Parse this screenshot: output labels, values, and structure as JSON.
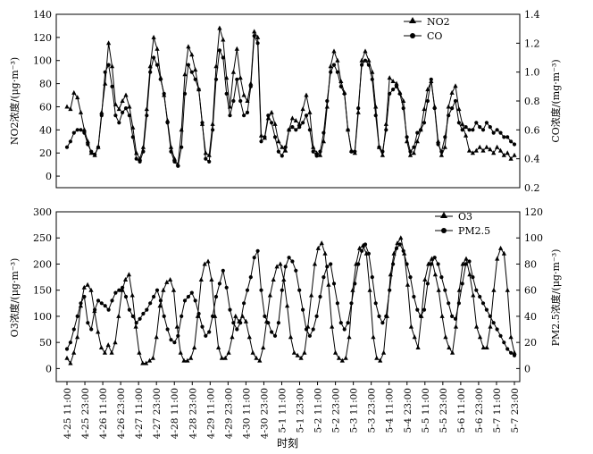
{
  "xlabel": "时刻",
  "x_ticks": [
    "4-25 11:00",
    "4-25 23:00",
    "4-26 11:00",
    "4-26 23:00",
    "4-27 11:00",
    "4-27 23:00",
    "4-28 11:00",
    "4-28 23:00",
    "4-29 11:00",
    "4-29 23:00",
    "4-30 11:00",
    "4-30 23:00",
    "5-1 11:00",
    "5-1 23:00",
    "5-2 11:00",
    "5-2 23:00",
    "5-3 11:00",
    "5-3 23:00",
    "5-4 11:00",
    "5-4 23:00",
    "5-5 11:00",
    "5-5 23:00",
    "5-6 11:00",
    "5-6 23:00",
    "5-7 11:00",
    "5-7 23:00"
  ],
  "chart_data": [
    {
      "type": "line",
      "ylabel_left": "NO2浓度/(μg·m⁻³)",
      "ylabel_right": "CO浓度/(mg·m⁻³)",
      "ylim_left": [
        -10,
        140
      ],
      "ylim_right": [
        0.2,
        1.4
      ],
      "yticks_left": [
        "0",
        "20",
        "40",
        "60",
        "80",
        "100",
        "120",
        "140"
      ],
      "yticks_right": [
        "0.2",
        "0.4",
        "0.6",
        "0.8",
        "1.0",
        "1.2",
        "1.4"
      ],
      "legend_position": "top-right",
      "series": [
        {
          "name": "NO2",
          "axis": "left",
          "marker": "triangle",
          "values": [
            60,
            58,
            72,
            68,
            55,
            40,
            30,
            20,
            18,
            25,
            55,
            80,
            115,
            95,
            62,
            58,
            65,
            70,
            60,
            42,
            20,
            15,
            25,
            58,
            95,
            120,
            110,
            85,
            70,
            48,
            25,
            15,
            10,
            40,
            88,
            112,
            105,
            92,
            75,
            45,
            20,
            18,
            45,
            95,
            128,
            118,
            85,
            60,
            90,
            110,
            85,
            70,
            65,
            80,
            125,
            120,
            35,
            33,
            50,
            55,
            45,
            30,
            25,
            22,
            40,
            50,
            48,
            45,
            58,
            70,
            55,
            25,
            20,
            18,
            30,
            60,
            95,
            108,
            100,
            82,
            72,
            40,
            22,
            20,
            55,
            100,
            108,
            100,
            90,
            60,
            25,
            18,
            45,
            85,
            82,
            80,
            72,
            65,
            30,
            18,
            20,
            30,
            40,
            58,
            75,
            82,
            60,
            30,
            18,
            25,
            60,
            72,
            78,
            58,
            45,
            35,
            22,
            20,
            22,
            25,
            22,
            25,
            23,
            20,
            25,
            22,
            18,
            20,
            15,
            18
          ]
        },
        {
          "name": "CO",
          "axis": "right",
          "marker": "circle",
          "values": [
            0.48,
            0.52,
            0.58,
            0.6,
            0.6,
            0.58,
            0.5,
            0.45,
            0.43,
            0.48,
            0.7,
            1.0,
            1.05,
            0.9,
            0.7,
            0.65,
            0.72,
            0.75,
            0.7,
            0.55,
            0.4,
            0.38,
            0.45,
            0.7,
            1.0,
            1.1,
            1.05,
            0.95,
            0.85,
            0.65,
            0.45,
            0.38,
            0.35,
            0.48,
            0.85,
            1.05,
            1.0,
            0.95,
            0.88,
            0.65,
            0.4,
            0.38,
            0.6,
            0.95,
            1.15,
            1.1,
            0.85,
            0.7,
            0.8,
            0.95,
            0.8,
            0.7,
            0.72,
            0.9,
            1.25,
            1.2,
            0.52,
            0.55,
            0.7,
            0.65,
            0.55,
            0.45,
            0.42,
            0.48,
            0.6,
            0.62,
            0.6,
            0.62,
            0.65,
            0.7,
            0.6,
            0.45,
            0.42,
            0.45,
            0.58,
            0.8,
            1.0,
            1.05,
            1.0,
            0.9,
            0.85,
            0.6,
            0.45,
            0.45,
            0.75,
            1.05,
            1.08,
            1.05,
            0.95,
            0.7,
            0.48,
            0.45,
            0.6,
            0.85,
            0.88,
            0.9,
            0.85,
            0.75,
            0.55,
            0.45,
            0.48,
            0.58,
            0.6,
            0.65,
            0.8,
            0.95,
            0.75,
            0.5,
            0.45,
            0.55,
            0.7,
            0.75,
            0.8,
            0.65,
            0.6,
            0.62,
            0.6,
            0.6,
            0.65,
            0.62,
            0.6,
            0.65,
            0.62,
            0.58,
            0.6,
            0.58,
            0.55,
            0.55,
            0.52,
            0.5
          ]
        }
      ]
    },
    {
      "type": "line",
      "ylabel_left": "O3浓度/(μg·m⁻³)",
      "ylabel_right": "PM2.5浓度/(μg·m⁻³)",
      "ylim_left": [
        -25,
        300
      ],
      "ylim_right": [
        -10,
        120
      ],
      "yticks_left": [
        "0",
        "50",
        "100",
        "150",
        "200",
        "250",
        "300"
      ],
      "yticks_right": [
        "0",
        "20",
        "40",
        "60",
        "80",
        "100",
        "120"
      ],
      "legend_position": "top-right",
      "series": [
        {
          "name": "O3",
          "axis": "left",
          "marker": "triangle",
          "values": [
            20,
            10,
            30,
            60,
            120,
            155,
            160,
            150,
            110,
            70,
            40,
            30,
            45,
            30,
            50,
            100,
            150,
            170,
            180,
            140,
            80,
            30,
            10,
            10,
            15,
            20,
            60,
            120,
            150,
            165,
            170,
            150,
            80,
            30,
            15,
            15,
            20,
            40,
            100,
            170,
            200,
            205,
            170,
            100,
            40,
            20,
            20,
            30,
            60,
            100,
            90,
            100,
            90,
            60,
            30,
            20,
            15,
            40,
            90,
            140,
            170,
            195,
            200,
            170,
            120,
            60,
            30,
            25,
            20,
            30,
            80,
            140,
            200,
            230,
            240,
            220,
            160,
            80,
            30,
            20,
            15,
            20,
            60,
            150,
            200,
            230,
            235,
            220,
            150,
            60,
            20,
            15,
            30,
            100,
            180,
            220,
            240,
            250,
            220,
            160,
            80,
            60,
            40,
            100,
            170,
            200,
            210,
            180,
            150,
            100,
            60,
            40,
            30,
            80,
            150,
            200,
            210,
            180,
            140,
            80,
            60,
            40,
            40,
            80,
            150,
            210,
            230,
            220,
            150,
            60,
            30
          ]
        },
        {
          "name": "PM2.5",
          "axis": "right",
          "marker": "circle",
          "values": [
            15,
            20,
            30,
            40,
            50,
            55,
            35,
            30,
            45,
            52,
            50,
            48,
            45,
            52,
            58,
            60,
            62,
            55,
            45,
            40,
            35,
            38,
            42,
            45,
            50,
            55,
            60,
            52,
            40,
            30,
            22,
            20,
            25,
            40,
            52,
            55,
            58,
            52,
            42,
            32,
            25,
            28,
            40,
            55,
            65,
            75,
            62,
            45,
            35,
            30,
            35,
            50,
            60,
            70,
            85,
            90,
            60,
            40,
            35,
            28,
            25,
            35,
            60,
            78,
            85,
            82,
            75,
            60,
            45,
            30,
            25,
            30,
            40,
            55,
            70,
            78,
            80,
            65,
            50,
            35,
            30,
            35,
            50,
            65,
            80,
            90,
            95,
            88,
            70,
            50,
            40,
            35,
            40,
            60,
            80,
            92,
            95,
            90,
            80,
            70,
            55,
            45,
            40,
            45,
            65,
            80,
            85,
            80,
            70,
            60,
            50,
            40,
            38,
            50,
            65,
            80,
            82,
            70,
            60,
            55,
            50,
            45,
            40,
            35,
            30,
            25,
            20,
            15,
            12,
            10
          ]
        }
      ]
    }
  ]
}
